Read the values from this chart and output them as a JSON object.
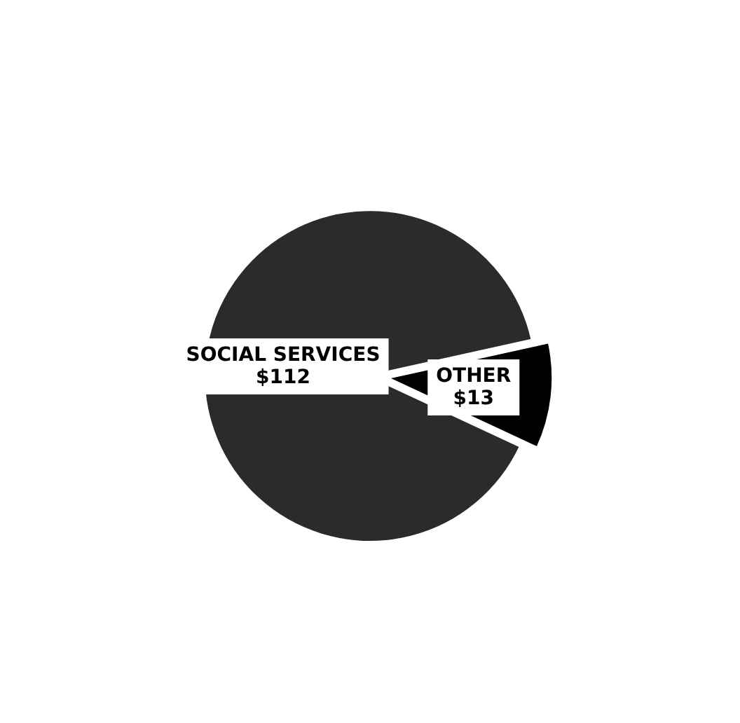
{
  "chart_data": {
    "type": "pie",
    "categories": [
      "SOCIAL SERVICES",
      "OTHER"
    ],
    "values": [
      112,
      13
    ],
    "value_labels": [
      "$112",
      "$13"
    ],
    "colors": [
      "#2b2b2b",
      "#000000"
    ],
    "legend": false
  }
}
